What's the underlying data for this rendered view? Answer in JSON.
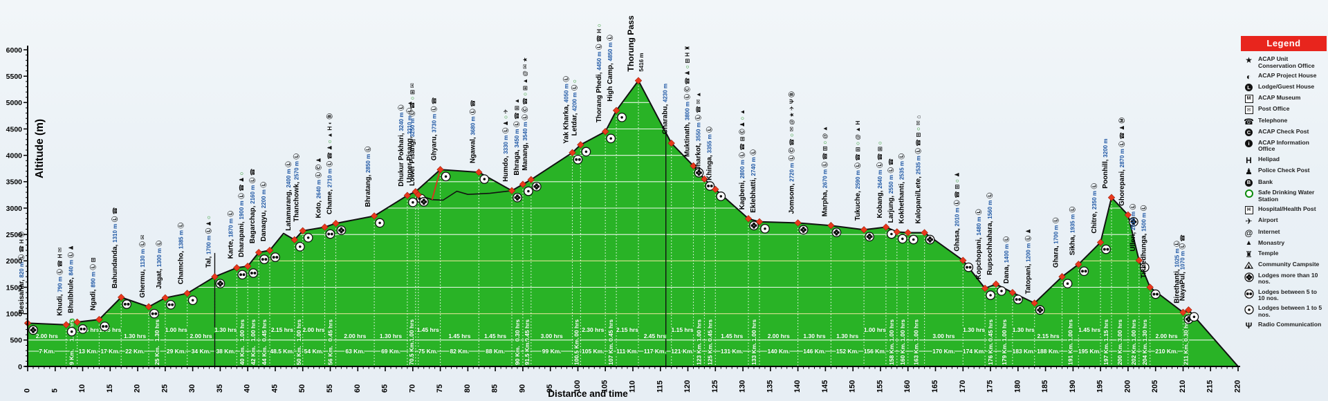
{
  "page": {
    "background": "#eaf1f6"
  },
  "axis": {
    "x_label": "Distance and time",
    "y_label": "Altitude (m)",
    "x_min": 0,
    "x_max": 220,
    "x_major": 5,
    "x_minor": 1,
    "y_min": 0,
    "y_max": 6000,
    "y_major": 500,
    "y_minor": 100
  },
  "legend": {
    "title": "Legend",
    "items": [
      {
        "icon": "star",
        "label": "ACAP Unit Conservation Office"
      },
      {
        "icon": "project-house",
        "label": "ACAP Project House"
      },
      {
        "icon": "lodge",
        "label": "Lodge/Guest House"
      },
      {
        "icon": "museum",
        "label": "ACAP Museum"
      },
      {
        "icon": "post-office",
        "label": "Post Office"
      },
      {
        "icon": "telephone",
        "label": "Telephone"
      },
      {
        "icon": "check-post",
        "label": "ACAP Check Post"
      },
      {
        "icon": "info-office",
        "label": "ACAP Information Office"
      },
      {
        "icon": "helipad",
        "label": "Helipad"
      },
      {
        "icon": "police",
        "label": "Police Check Post"
      },
      {
        "icon": "bank",
        "label": "Bank"
      },
      {
        "icon": "safe-water",
        "label": "Safe Drinking Water Station"
      },
      {
        "icon": "hospital",
        "label": "Hospital/Health Post"
      },
      {
        "icon": "airport",
        "label": "Airport"
      },
      {
        "icon": "internet",
        "label": "Internet"
      },
      {
        "icon": "monastery",
        "label": "Monastry"
      },
      {
        "icon": "temple",
        "label": "Temple"
      },
      {
        "icon": "campsite",
        "label": "Community Campsite"
      },
      {
        "icon": "lodges-more-10",
        "label": "Lodges more than 10 nos."
      },
      {
        "icon": "lodges-5-10",
        "label": "Lodges between 5 to 10 nos."
      },
      {
        "icon": "lodges-1-5",
        "label": "Lodges between 1 to 5 nos."
      },
      {
        "icon": "radio",
        "label": "Radio Communication"
      }
    ]
  },
  "chart_data": {
    "type": "area",
    "xlabel": "Distance and time",
    "ylabel": "Altitude (m)",
    "xlim": [
      0,
      220
    ],
    "ylim": [
      0,
      6000
    ],
    "grid": "on",
    "legend_position": "right",
    "colors": {
      "area": "#29b326",
      "line": "#111111",
      "marker": "#e8391d",
      "grid_white": "#ffffff",
      "grid_yellow": "#efe7a0",
      "alt_text": "#1c55a3",
      "water_icon": "#0c8b0c",
      "legend_header": "#e8251d"
    },
    "summit": {
      "name": "Thorung Pass",
      "alt_label": "5416 m"
    },
    "stations": [
      {
        "name": "Besisahar",
        "alt": 820,
        "alt_label": "820 m",
        "km": 0,
        "icons": [
          "lodge",
          "telephone",
          "helipad",
          "check-post"
        ],
        "lodges": "more10"
      },
      {
        "name": "Khudi",
        "alt": 790,
        "alt_label": "790 m",
        "km": 7,
        "icons": [
          "lodge",
          "telephone",
          "helipad",
          "post-office"
        ],
        "lodges": "1to5"
      },
      {
        "name": "Bhulbhule",
        "alt": 840,
        "alt_label": "840 m",
        "km": 9,
        "icons": [
          "lodge",
          "police"
        ],
        "lodges": "5to10"
      },
      {
        "name": "Ngadi",
        "alt": 890,
        "alt_label": "890 m",
        "km": 13,
        "icons": [
          "lodge",
          "hospital"
        ],
        "lodges": "5to10"
      },
      {
        "name": "Bahundanda",
        "alt": 1310,
        "alt_label": "1310 m",
        "km": 17,
        "icons": [
          "lodge",
          "telephone"
        ],
        "lodges": "5to10"
      },
      {
        "name": "Ghermu",
        "alt": 1130,
        "alt_label": "1130 m",
        "km": 22,
        "icons": [
          "lodge",
          "post-office"
        ],
        "lodges": "5to10"
      },
      {
        "name": "Jagat",
        "alt": 1300,
        "alt_label": "1300 m",
        "km": 25,
        "icons": [
          "lodge"
        ],
        "lodges": "5to10"
      },
      {
        "name": "Chamcho",
        "alt": 1385,
        "alt_label": "1385 m",
        "km": 29,
        "icons": [
          "lodge"
        ],
        "lodges": "1to5"
      },
      {
        "name": "Tal",
        "alt": 1700,
        "alt_label": "1700 m",
        "km": 34,
        "icons": [
          "lodge",
          "police",
          "safe-water"
        ],
        "lodges": "more10"
      },
      {
        "name": "Karte",
        "alt": 1870,
        "alt_label": "1870 m",
        "km": 38,
        "icons": [
          "lodge"
        ],
        "lodges": "5to10"
      },
      {
        "name": "Dharapani",
        "alt": 1900,
        "alt_label": "1900 m",
        "km": 40,
        "icons": [
          "lodge",
          "telephone",
          "police",
          "safe-water"
        ],
        "lodges": "5to10"
      },
      {
        "name": "Bagarchap",
        "alt": 2160,
        "alt_label": "2160 m",
        "km": 42,
        "icons": [
          "lodge",
          "telephone"
        ],
        "lodges": "5to10"
      },
      {
        "name": "Danaqyu",
        "alt": 2200,
        "alt_label": "2200 m",
        "km": 44,
        "icons": [
          "lodge"
        ],
        "lodges": "5to10"
      },
      {
        "name": "Latamarang",
        "alt": 2400,
        "alt_label": "2400 m",
        "km": 48.5,
        "icons": [
          "lodge"
        ],
        "lodges": "1to5"
      },
      {
        "name": "Thanchowk",
        "alt": 2570,
        "alt_label": "2570 m",
        "km": 50,
        "icons": [
          "lodge"
        ],
        "lodges": "1to5"
      },
      {
        "name": "Koto",
        "alt": 2640,
        "alt_label": "2640 m",
        "km": 54,
        "icons": [
          "lodge",
          "check-post",
          "police"
        ],
        "lodges": "5to10"
      },
      {
        "name": "Chame",
        "alt": 2710,
        "alt_label": "2710 m",
        "km": 56,
        "icons": [
          "lodge",
          "telephone",
          "police",
          "safe-water",
          "monastery",
          "helipad",
          "project-house",
          "bank"
        ],
        "lodges": "more10"
      },
      {
        "name": "Bhratang",
        "alt": 2850,
        "alt_label": "2850 m",
        "km": 63,
        "icons": [
          "lodge"
        ],
        "lodges": "1to5"
      },
      {
        "name": "Dhukur Pokhari",
        "alt": 3240,
        "alt_label": "3240 m",
        "km": 69,
        "icons": [
          "lodge"
        ],
        "lodges": "1to5"
      },
      {
        "name": "Upper Pisang",
        "alt": 3310,
        "alt_label": "3310 m",
        "km": 70.5,
        "icons": [
          "lodge",
          "monastery"
        ],
        "lodges": "5to10"
      },
      {
        "name": "Lower Pisang",
        "alt": 3250,
        "alt_label": "3250 m",
        "km": 71,
        "icons": [
          "lodge",
          "telephone",
          "safe-water",
          "hospital",
          "post-office"
        ],
        "lodges": "more10",
        "branch": "lower"
      },
      {
        "name": "Ghyaru",
        "alt": 3730,
        "alt_label": "3730 m",
        "km": 75,
        "icons": [
          "lodge",
          "telephone"
        ],
        "lodges": "1to5"
      },
      {
        "name": "Ngawal",
        "alt": 3680,
        "alt_label": "3680 m",
        "km": 82,
        "icons": [
          "lodge",
          "telephone"
        ],
        "lodges": "1to5"
      },
      {
        "name": "Humdo",
        "alt": 3330,
        "alt_label": "3330 m",
        "km": 88,
        "icons": [
          "lodge",
          "police",
          "safe-water",
          "airport"
        ],
        "lodges": "more10"
      },
      {
        "name": "Bhraga",
        "alt": 3450,
        "alt_label": "3450 m",
        "km": 90,
        "icons": [
          "lodge",
          "telephone",
          "hospital",
          "monastery"
        ],
        "lodges": "1to5"
      },
      {
        "name": "Manang",
        "alt": 3540,
        "alt_label": "3540 m",
        "km": 91.5,
        "icons": [
          "lodge",
          "check-post",
          "telephone",
          "safe-water",
          "hospital",
          "monastery",
          "internet",
          "post-office",
          "star"
        ],
        "lodges": "more10"
      },
      {
        "name": "Yak Kharka",
        "alt": 4050,
        "alt_label": "4050 m",
        "km": 99,
        "icons": [
          "lodge"
        ],
        "lodges": "5to10"
      },
      {
        "name": "Letdar",
        "alt": 4200,
        "alt_label": "4200 m",
        "km": 100.5,
        "icons": [
          "lodge",
          "safe-water"
        ],
        "lodges": "1to5"
      },
      {
        "name": "Thorang Phedi",
        "alt": 4450,
        "alt_label": "4450 m",
        "km": 105,
        "icons": [
          "lodge",
          "telephone",
          "helipad",
          "safe-water"
        ],
        "lodges": "1to5"
      },
      {
        "name": "High Camp",
        "alt": 4850,
        "alt_label": "4850 m",
        "km": 107,
        "icons": [
          "lodge"
        ],
        "lodges": "1to5"
      },
      {
        "name": "Thorung Pass",
        "alt": 5416,
        "alt_label": "5416 m",
        "km": 111,
        "icons": [],
        "lodges": "none",
        "summit": true
      },
      {
        "name": "Charabu",
        "alt": 4230,
        "alt_label": "4230 m",
        "km": 117,
        "icons": [],
        "lodges": "none"
      },
      {
        "name": "Muktinath",
        "alt": 3800,
        "alt_label": "3800 m",
        "km": 121,
        "icons": [
          "lodge",
          "check-post",
          "telephone",
          "police",
          "safe-water",
          "hospital",
          "helipad",
          "temple"
        ],
        "lodges": "more10"
      },
      {
        "name": "Jharkot",
        "alt": 3550,
        "alt_label": "3550 m",
        "km": 123,
        "icons": [
          "lodge",
          "telephone",
          "post-office",
          "monastery"
        ],
        "lodges": "5to10"
      },
      {
        "name": "Khinga",
        "alt": 3355,
        "alt_label": "3355 m",
        "km": 125,
        "icons": [
          "lodge"
        ],
        "lodges": "1to5"
      },
      {
        "name": "Kagbeni",
        "alt": 2800,
        "alt_label": "2800 m",
        "km": 131,
        "icons": [
          "lodge",
          "telephone",
          "hospital",
          "check-post",
          "police",
          "safe-water",
          "monastery"
        ],
        "lodges": "more10"
      },
      {
        "name": "Eklebhatti",
        "alt": 2740,
        "alt_label": "2740 m",
        "km": 133,
        "icons": [
          "lodge"
        ],
        "lodges": "1to5"
      },
      {
        "name": "Jomsom",
        "alt": 2720,
        "alt_label": "2720 m",
        "km": 140,
        "icons": [
          "lodge",
          "check-post",
          "telephone",
          "safe-water",
          "post-office",
          "internet",
          "star",
          "airport",
          "radio",
          "bank"
        ],
        "lodges": "more10"
      },
      {
        "name": "Marpha",
        "alt": 2670,
        "alt_label": "2670 m",
        "km": 146,
        "icons": [
          "lodge",
          "telephone",
          "hospital",
          "safe-water",
          "internet",
          "monastery"
        ],
        "lodges": "more10"
      },
      {
        "name": "Tukuche",
        "alt": 2590,
        "alt_label": "2590 m",
        "km": 152,
        "icons": [
          "lodge",
          "telephone",
          "hospital",
          "safe-water",
          "internet",
          "monastery",
          "helipad"
        ],
        "lodges": "more10"
      },
      {
        "name": "Kobang",
        "alt": 2640,
        "alt_label": "2640 m",
        "km": 156,
        "icons": [
          "lodge",
          "telephone",
          "hospital",
          "safe-water"
        ],
        "lodges": "1to5"
      },
      {
        "name": "Larjung",
        "alt": 2550,
        "alt_label": "2550 m",
        "km": 158,
        "icons": [
          "lodge",
          "telephone"
        ],
        "lodges": "1to5"
      },
      {
        "name": "Kokhethanti",
        "alt": 2535,
        "alt_label": "2535 m",
        "km": 160,
        "icons": [
          "lodge"
        ],
        "lodges": "1to5"
      },
      {
        "name": "Kalopani/Lete",
        "alt": 2535,
        "alt_label": "2535 m",
        "km": 163,
        "icons": [
          "lodge",
          "telephone",
          "hospital",
          "safe-water",
          "post-office",
          "campsite"
        ],
        "lodges": "more10"
      },
      {
        "name": "Ghasa",
        "alt": 2010,
        "alt_label": "2010 m",
        "km": 170,
        "icons": [
          "lodge",
          "telephone",
          "hospital",
          "safe-water",
          "police"
        ],
        "lodges": "5to10"
      },
      {
        "name": "Kopchopani",
        "alt": 1480,
        "alt_label": "1480 m",
        "km": 174,
        "icons": [
          "lodge"
        ],
        "lodges": "1to5"
      },
      {
        "name": "Rupsochhahara",
        "alt": 1560,
        "alt_label": "1560 m",
        "km": 176,
        "icons": [
          "lodge"
        ],
        "lodges": "1to5"
      },
      {
        "name": "Dana",
        "alt": 1400,
        "alt_label": "1400 m",
        "km": 179,
        "icons": [
          "lodge"
        ],
        "lodges": "5to10"
      },
      {
        "name": "Tatopani",
        "alt": 1200,
        "alt_label": "1200 m",
        "km": 183,
        "icons": [
          "lodge",
          "police"
        ],
        "lodges": "more10"
      },
      {
        "name": "Ghara",
        "alt": 1700,
        "alt_label": "1700 m",
        "km": 188,
        "icons": [
          "lodge"
        ],
        "lodges": "1to5"
      },
      {
        "name": "Sikha",
        "alt": 1935,
        "alt_label": "1935 m",
        "km": 191,
        "icons": [
          "lodge"
        ],
        "lodges": "5to10"
      },
      {
        "name": "Chitre",
        "alt": 2350,
        "alt_label": "2350 m",
        "km": 195,
        "icons": [
          "lodge"
        ],
        "lodges": "5to10"
      },
      {
        "name": "Poonhill",
        "alt": 3200,
        "alt_label": "3200 m",
        "km": 197,
        "icons": [],
        "lodges": "none"
      },
      {
        "name": "Ghorepani",
        "alt": 2870,
        "alt_label": "2870 m",
        "km": 200,
        "icons": [
          "lodge",
          "telephone",
          "police",
          "museum"
        ],
        "lodges": "more10"
      },
      {
        "name": "Ulleri",
        "alt": 2010,
        "alt_label": "2010 m",
        "km": 202,
        "icons": [
          "lodge"
        ],
        "lodges": "1to5"
      },
      {
        "name": "Tikhedhunga",
        "alt": 1500,
        "alt_label": "1500 m",
        "km": 204,
        "icons": [
          "lodge"
        ],
        "lodges": "5to10"
      },
      {
        "name": "Birethanti",
        "alt": 1025,
        "alt_label": "1025 m",
        "km": 210,
        "icons": [
          "lodge"
        ],
        "lodges": "more10"
      },
      {
        "name": "NayaPul",
        "alt": 1070,
        "alt_label": "1070 m",
        "km": 211,
        "icons": [
          "lodge",
          "telephone"
        ],
        "lodges": "1to5"
      }
    ],
    "extra_profile_points": [
      [
        46.5,
        2520
      ],
      [
        220,
        0
      ]
    ],
    "lower_route": [
      [
        70.5,
        3310
      ],
      [
        71,
        3250
      ],
      [
        73.5,
        3160
      ],
      [
        75.5,
        3150
      ],
      [
        78,
        3320
      ],
      [
        80,
        3260
      ],
      [
        84,
        3280
      ],
      [
        88,
        3330
      ]
    ],
    "red_link": [
      [
        75,
        3730
      ],
      [
        73.5,
        3160
      ]
    ],
    "dividers": [
      {
        "km": 34,
        "top_alt": 2150
      },
      {
        "km": 116,
        "top_alt": 4430
      }
    ],
    "segment_times": [
      "2.00",
      "1.00",
      "1.15",
      "1.45",
      "1.30",
      "1.30",
      "1.00",
      "2.00",
      "1.30",
      "1.00",
      "1.00",
      "0.45",
      "2.15",
      "1.00",
      "2.00",
      "0.45",
      "2.00",
      "1.30",
      "1.00",
      "1.45",
      "1.45",
      "1.45",
      "0.30",
      "0.45",
      "3.00",
      "1.00",
      "2.30",
      "0.45",
      "2.15",
      "2.45",
      "1.15",
      "1.00",
      "0.45",
      "1.45",
      "1.00",
      "2.00",
      "1.30",
      "1.30",
      "1.00",
      "1.00",
      "1.00",
      "1.00",
      "3.00",
      "1.30",
      "0.45",
      "1.00",
      "1.30",
      "2.15",
      "1.00",
      "1.45",
      "1.15",
      "3.00",
      "1.00",
      "1.30",
      "2.00",
      "0.30"
    ],
    "segment_km": [
      "7",
      "9",
      "13",
      "17",
      "22",
      "25",
      "29",
      "34",
      "38",
      "40",
      "42",
      "44",
      "48.5",
      "50",
      "54",
      "56",
      "63",
      "69",
      "70.5",
      "75",
      "82",
      "88",
      "90",
      "91.5",
      "99",
      "100.5",
      "105",
      "107",
      "111",
      "117",
      "121",
      "123",
      "125",
      "131",
      "133",
      "140",
      "146",
      "152",
      "156",
      "158",
      "160",
      "163",
      "170",
      "174",
      "176",
      "179",
      "183",
      "188",
      "191",
      "195",
      "197",
      "200",
      "202",
      "204",
      "210",
      "211"
    ],
    "time_unit": "hrs",
    "km_unit": "Km."
  }
}
